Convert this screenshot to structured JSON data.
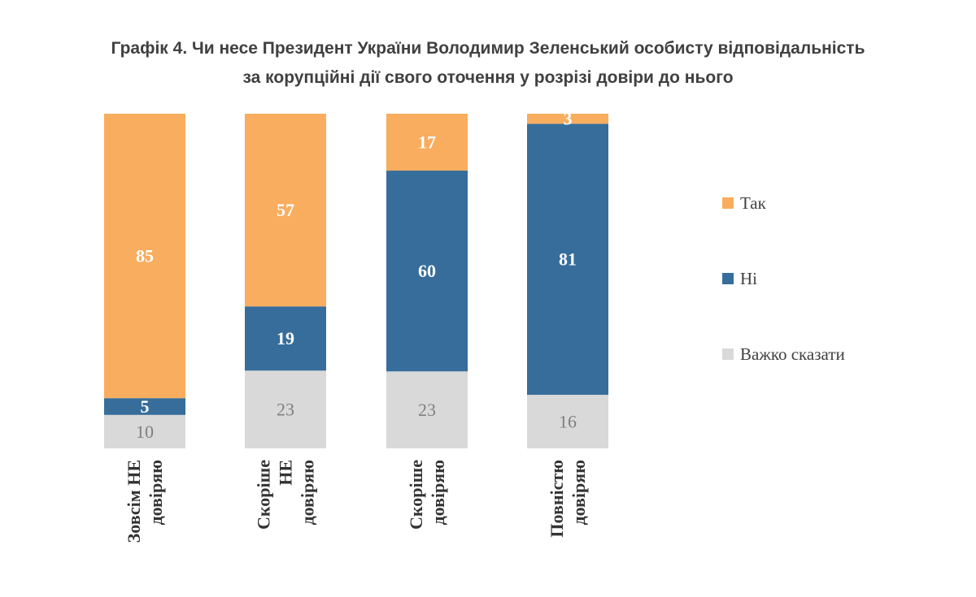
{
  "title": {
    "line1": "Графік 4. Чи несе Президент України Володимир Зеленський особисту відповідальність",
    "line2": "за корупційні дії свого оточення у розрізі довіри до нього"
  },
  "chart_data": {
    "type": "bar",
    "stacked": true,
    "percent_stacked": true,
    "categories": [
      [
        "Зовсім НЕ",
        "довіряю"
      ],
      [
        "Скоріше",
        "НЕ",
        "довіряю"
      ],
      [
        "Скоріше",
        "довіряю"
      ],
      [
        "Повністю",
        "довіряю"
      ]
    ],
    "series": [
      {
        "name": "Важко сказати",
        "values": [
          10,
          23,
          23,
          16
        ],
        "color": "#D9D9D9",
        "label_color": "#7F7F7F"
      },
      {
        "name": "Ні",
        "values": [
          5,
          19,
          60,
          81
        ],
        "color": "#376D9B",
        "label_color": "#FFFFFF"
      },
      {
        "name": "Так",
        "values": [
          85,
          57,
          17,
          3
        ],
        "color": "#F9AD5E",
        "label_color": "#FFFFFF"
      }
    ],
    "legend": {
      "position": "right",
      "order": [
        "Так",
        "Ні",
        "Важко сказати"
      ]
    },
    "grid": false,
    "axes_visible": false
  }
}
